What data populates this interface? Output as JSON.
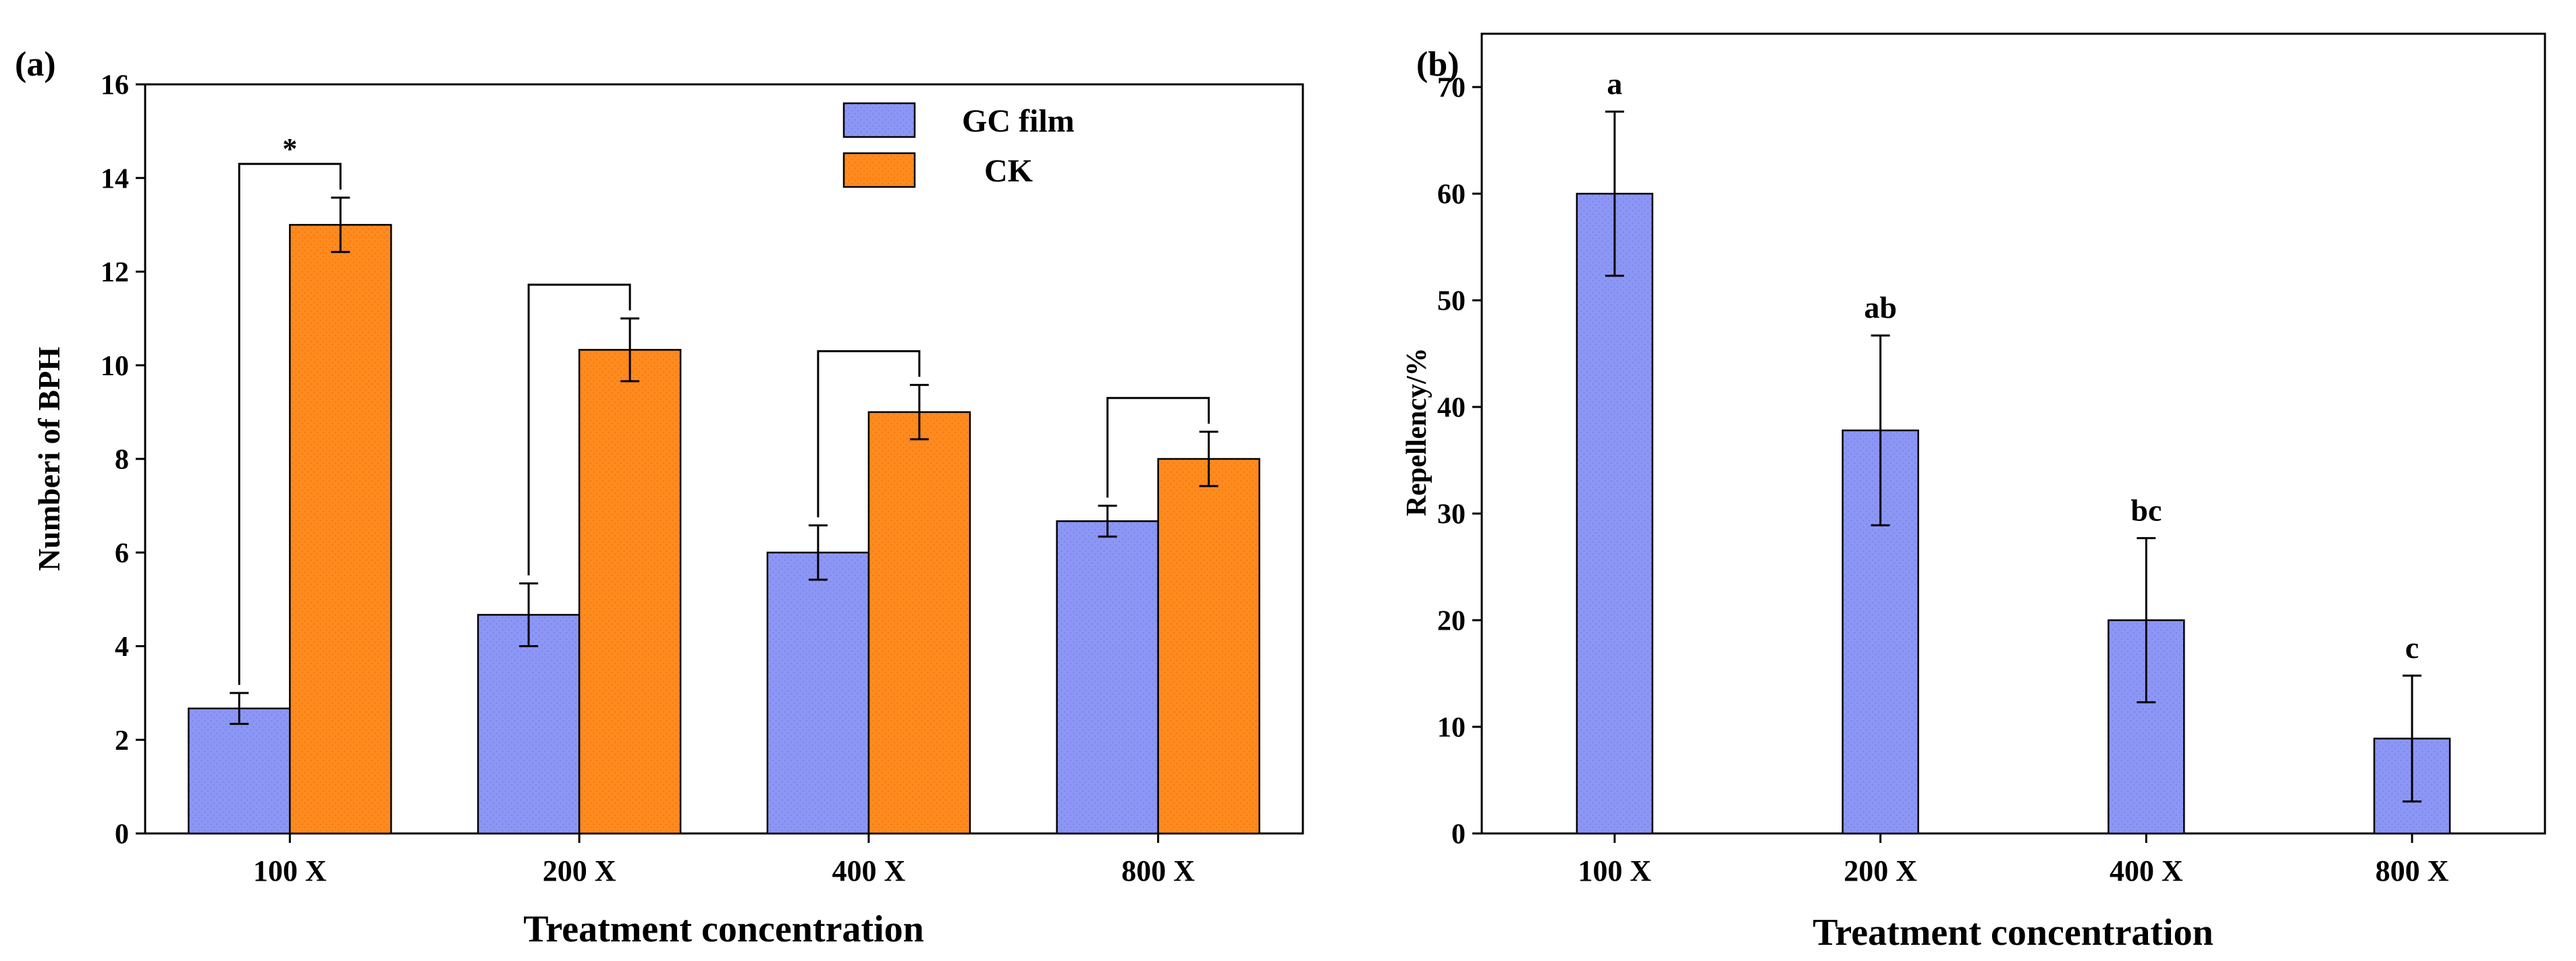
{
  "colors": {
    "series_blue": "#8c96f5",
    "series_orange": "#ff8a1e",
    "axis": "#000000",
    "background": "#ffffff"
  },
  "panels": {
    "a": {
      "label": "(a)"
    },
    "b": {
      "label": "(b)"
    }
  },
  "chart_data": [
    {
      "id": "a",
      "type": "bar",
      "panel_label": "(a)",
      "categories": [
        "100 X",
        "200 X",
        "400 X",
        "800 X"
      ],
      "series": [
        {
          "name": "GC film",
          "color": "#8c96f5",
          "values": [
            2.67,
            4.67,
            6.0,
            6.67
          ],
          "errors": [
            0.33,
            0.67,
            0.58,
            0.33
          ]
        },
        {
          "name": "CK",
          "color": "#ff8a1e",
          "values": [
            13.0,
            10.33,
            9.0,
            8.0
          ],
          "errors": [
            0.58,
            0.67,
            0.58,
            0.58
          ]
        }
      ],
      "significance": [
        {
          "category": "100 X",
          "label": "*"
        },
        {
          "category": "200 X",
          "label": ""
        },
        {
          "category": "400 X",
          "label": ""
        },
        {
          "category": "800 X",
          "label": ""
        }
      ],
      "xlabel": "Treatment concentration",
      "ylabel": "Numberi  of BPH",
      "ylim": [
        0,
        16
      ],
      "yticks": [
        0,
        2,
        4,
        6,
        8,
        10,
        12,
        14,
        16
      ],
      "legend_position": "top-right",
      "grid": false
    },
    {
      "id": "b",
      "type": "bar",
      "panel_label": "(b)",
      "categories": [
        "100 X",
        "200 X",
        "400 X",
        "800 X"
      ],
      "series": [
        {
          "color": "#8c96f5",
          "values": [
            60.0,
            37.8,
            20.0,
            8.9
          ],
          "errors": [
            7.7,
            8.9,
            7.7,
            5.9
          ]
        }
      ],
      "bar_labels": [
        "a",
        "ab",
        "bc",
        "c"
      ],
      "xlabel": "Treatment concentration",
      "ylabel": "Repellency/%",
      "ylim": [
        0,
        75
      ],
      "yticks": [
        0,
        10,
        20,
        30,
        40,
        50,
        60,
        70
      ],
      "grid": false
    }
  ]
}
